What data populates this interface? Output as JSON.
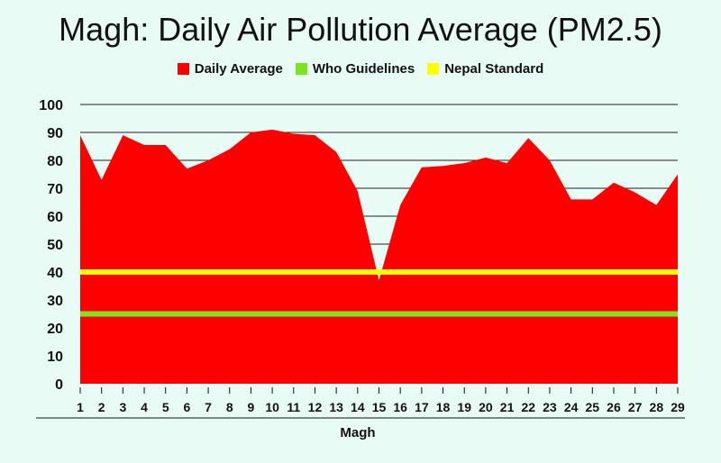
{
  "chart_data": {
    "type": "area",
    "title": "Magh: Daily Air Pollution Average (PM2.5)",
    "xlabel": "Magh",
    "ylabel": "",
    "ylim": [
      0,
      100
    ],
    "yticks": [
      0,
      10,
      20,
      30,
      40,
      50,
      60,
      70,
      80,
      90,
      100
    ],
    "x": [
      1,
      2,
      3,
      4,
      5,
      6,
      7,
      8,
      9,
      10,
      11,
      12,
      13,
      14,
      15,
      16,
      17,
      18,
      19,
      20,
      21,
      22,
      23,
      24,
      25,
      26,
      27,
      28,
      29
    ],
    "grid": true,
    "legend_position": "top",
    "series": [
      {
        "name": "Daily Average",
        "color": "#ff0000",
        "values": [
          89,
          73,
          89,
          85.5,
          85.5,
          77,
          80,
          84,
          90,
          91,
          89.5,
          89,
          83,
          69,
          37,
          64,
          77.5,
          78,
          79,
          81,
          79,
          88,
          80,
          66,
          66,
          72,
          68.5,
          64,
          75
        ]
      },
      {
        "name": "Who Guidelines",
        "color": "#7ee321",
        "constant": 25
      },
      {
        "name": "Nepal Standard",
        "color": "#ffff00",
        "constant": 40
      }
    ]
  }
}
